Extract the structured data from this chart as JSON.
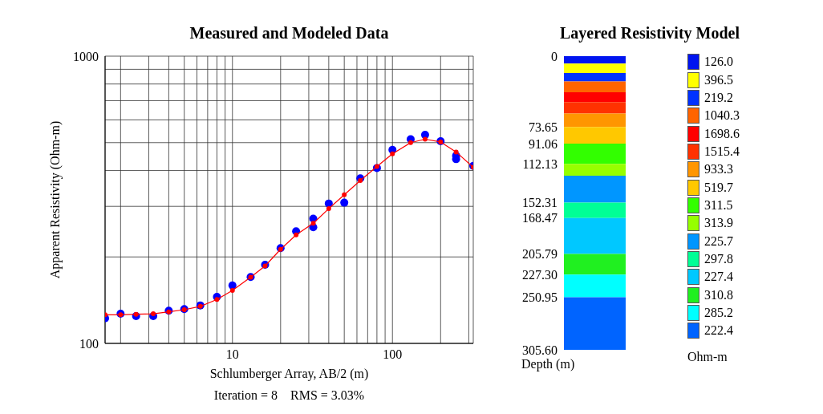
{
  "chart_data": [
    {
      "type": "scatter",
      "title": "Measured and Modeled Data",
      "xlabel": "Schlumberger Array, AB/2 (m)",
      "ylabel": "Apparent Resistivity (Ohm-m)",
      "annotations": [
        "Iteration = 8    RMS = 3.03%"
      ],
      "log": "xy",
      "grid": true,
      "marker": "circle",
      "xlim": [
        1.6,
        320
      ],
      "ylim": [
        100,
        1000
      ],
      "xticks": [
        {
          "value": 2,
          "label": null
        },
        {
          "value": 3,
          "label": null
        },
        {
          "value": 4,
          "label": null
        },
        {
          "value": 5,
          "label": null
        },
        {
          "value": 6,
          "label": null
        },
        {
          "value": 7,
          "label": null
        },
        {
          "value": 8,
          "label": null
        },
        {
          "value": 9,
          "label": null
        },
        10,
        {
          "value": 20,
          "label": null
        },
        {
          "value": 30,
          "label": null
        },
        {
          "value": 40,
          "label": null
        },
        {
          "value": 50,
          "label": null
        },
        {
          "value": 60,
          "label": null
        },
        {
          "value": 70,
          "label": null
        },
        {
          "value": 80,
          "label": null
        },
        {
          "value": 90,
          "label": null
        },
        100,
        {
          "value": 200,
          "label": null
        },
        {
          "value": 300,
          "label": null
        }
      ],
      "yticks": [
        100,
        {
          "value": 200,
          "label": null
        },
        {
          "value": 300,
          "label": null
        },
        {
          "value": 400,
          "label": null
        },
        {
          "value": 500,
          "label": null
        },
        {
          "value": 600,
          "label": null
        },
        {
          "value": 700,
          "label": null
        },
        {
          "value": 800,
          "label": null
        },
        {
          "value": 900,
          "label": null
        },
        1000
      ],
      "series": [
        {
          "type": "scatter",
          "color": "#0000ff",
          "x": [
            1.6,
            2,
            2.5,
            3.2,
            4,
            5,
            6.3,
            8,
            10,
            13,
            16,
            20,
            25,
            32,
            32,
            40,
            50,
            63,
            80,
            100,
            130,
            160,
            200,
            250,
            250,
            320
          ],
          "values": [
            122.3,
            126.8,
            124.5,
            124.5,
            129.9,
            131.6,
            135.6,
            145.2,
            159.2,
            170.3,
            187.8,
            214.6,
            245.6,
            272,
            253.6,
            306.9,
            309,
            375.6,
            408,
            472,
            514,
            532,
            505.8,
            450,
            438,
            415
          ]
        },
        {
          "type": "line",
          "color": "#ff0000",
          "x": [
            1.6,
            2,
            2.5,
            3.2,
            4,
            5,
            6.3,
            8,
            10,
            13,
            16,
            20,
            25,
            32,
            40,
            50,
            63,
            80,
            100,
            130,
            160,
            200,
            250,
            320
          ],
          "values": [
            125.8,
            125.8,
            126.3,
            126.8,
            128.8,
            131,
            134.6,
            142.2,
            152.9,
            170,
            186,
            212.6,
            238.6,
            262,
            294.5,
            329.3,
            369,
            413,
            457,
            500,
            514,
            502.6,
            464,
            410
          ]
        }
      ]
    },
    {
      "type": "bar",
      "title": "Layered Resistivity Model",
      "ylabel": "Depth (m)",
      "legend_title": "Ohm-m",
      "stacked": true,
      "legend": "right",
      "categories": [
        null
      ],
      "ylim": [
        305.6,
        0
      ],
      "yticks": [
        0,
        73.65,
        91.06,
        112.13,
        152.31,
        168.47,
        205.79,
        {
          "value": 227.3,
          "label": "227.30"
        },
        250.95,
        {
          "value": 305.6,
          "label": "305.60"
        }
      ],
      "series": [
        {
          "name": "126.0",
          "color": "#0014f0",
          "values": [
            7.7
          ]
        },
        {
          "name": "396.5",
          "color": "#ffff00",
          "values": [
            9.9
          ]
        },
        {
          "name": "219.2",
          "color": "#0032ff",
          "values": [
            8.8
          ]
        },
        {
          "name": "1040.3",
          "color": "#ff6400",
          "values": [
            11.1
          ]
        },
        {
          "name": "1698.6",
          "color": "#ff0000",
          "values": [
            10.3
          ]
        },
        {
          "name": "1515.4",
          "color": "#ff3200",
          "values": [
            11.9
          ]
        },
        {
          "name": "933.3",
          "color": "#ff9600",
          "values": [
            13.95
          ]
        },
        {
          "name": "519.7",
          "color": "#ffc800",
          "values": [
            17.41
          ]
        },
        {
          "name": "311.5",
          "color": "#32ff00",
          "values": [
            21.07
          ]
        },
        {
          "name": "313.9",
          "color": "#96ff00",
          "values": [
            12.37
          ]
        },
        {
          "name": "225.7",
          "color": "#0096ff",
          "values": [
            27.81
          ]
        },
        {
          "name": "297.8",
          "color": "#00ff96",
          "values": [
            16.16
          ]
        },
        {
          "name": "227.4",
          "color": "#00c8ff",
          "values": [
            37.32
          ]
        },
        {
          "name": "310.8",
          "color": "#20f020",
          "values": [
            21.51
          ]
        },
        {
          "name": "285.2",
          "color": "#00ffff",
          "values": [
            23.65
          ]
        },
        {
          "name": "222.4",
          "color": "#0064ff",
          "values": [
            54.65
          ]
        }
      ]
    }
  ]
}
